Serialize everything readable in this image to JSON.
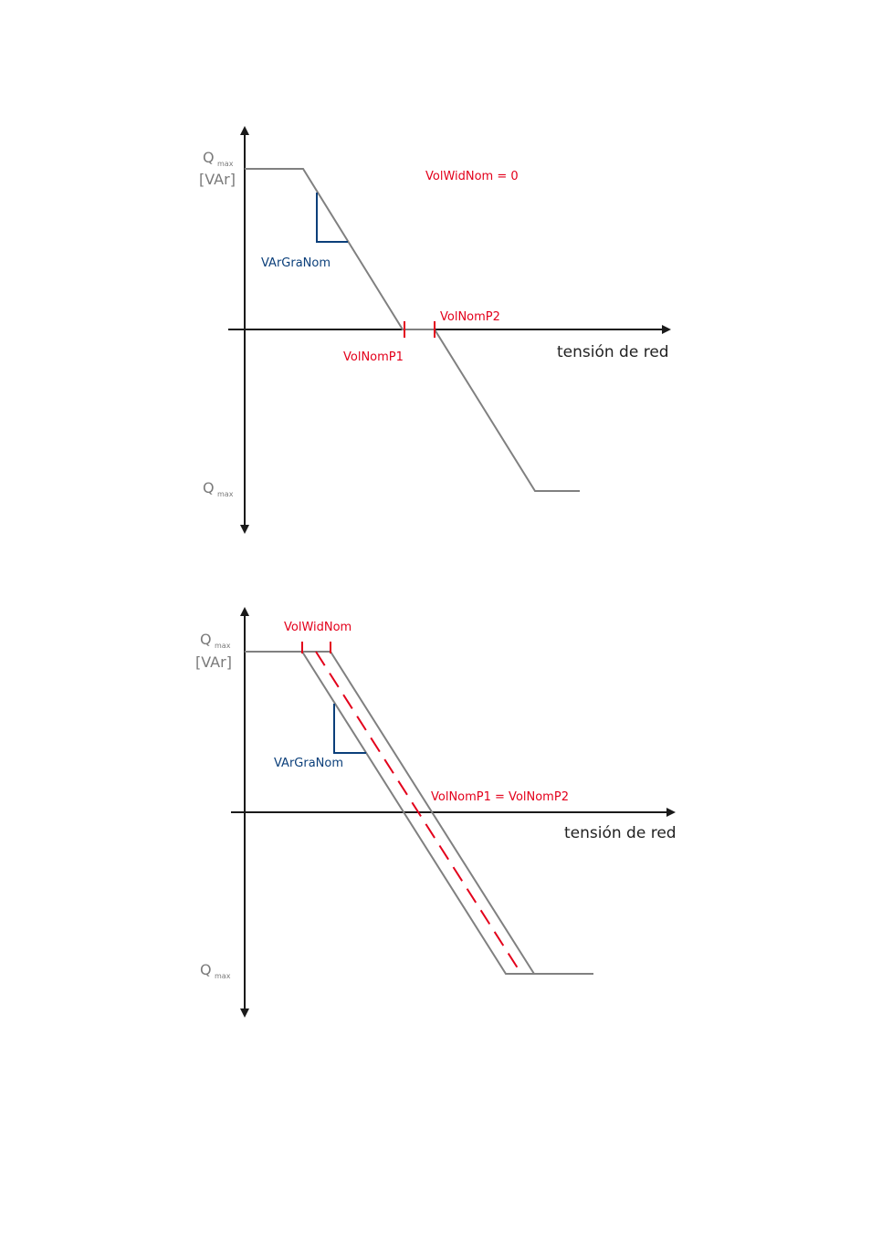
{
  "colors": {
    "axis": "#1a1a1a",
    "curve": "#808080",
    "red": "#e3001b",
    "blue": "#0b3f7a",
    "label_gray": "#7a7a7a"
  },
  "diagram_top": {
    "y_label_q": "Q",
    "y_label_q_sub": "max",
    "y_unit": "[VAr]",
    "y_bottom_q": "Q",
    "y_bottom_q_sub": "max",
    "x_axis_label": "tensión de red",
    "annotation_width": "VolWidNom = 0",
    "gradient_label": "VArGraNom",
    "point1_label": "VolNomP1",
    "point2_label": "VolNomP2"
  },
  "diagram_bottom": {
    "y_label_q": "Q",
    "y_label_q_sub": "max",
    "y_unit": "[VAr]",
    "y_bottom_q": "Q",
    "y_bottom_q_sub": "max",
    "x_axis_label": "tensión de red",
    "width_label": "VolWidNom",
    "gradient_label": "VArGraNom",
    "points_label": "VolNomP1 = VolNomP2"
  }
}
